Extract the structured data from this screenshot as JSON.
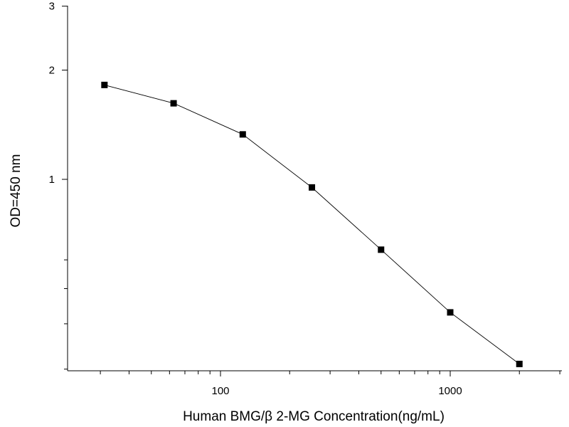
{
  "chart_data": {
    "type": "line",
    "title": "",
    "xlabel": "Human BMG/β 2-MG  Concentration(ng/mL)",
    "ylabel": "OD=450 nm",
    "x_scale": "log",
    "y_scale": "log",
    "xlim": [
      20,
      3000
    ],
    "ylim": [
      0.2,
      3
    ],
    "x_ticks": [
      100,
      1000
    ],
    "x_tick_labels": [
      "100",
      "1000"
    ],
    "y_ticks": [
      1,
      2,
      3
    ],
    "y_tick_labels": [
      "1",
      "2",
      "3"
    ],
    "grid": false,
    "legend": "none",
    "marker": "square",
    "series": [
      {
        "x": [
          31.25,
          62.5,
          125,
          250,
          500,
          1000,
          2000
        ],
        "y": [
          1.82,
          1.62,
          1.33,
          0.95,
          0.64,
          0.43,
          0.31
        ]
      }
    ]
  }
}
